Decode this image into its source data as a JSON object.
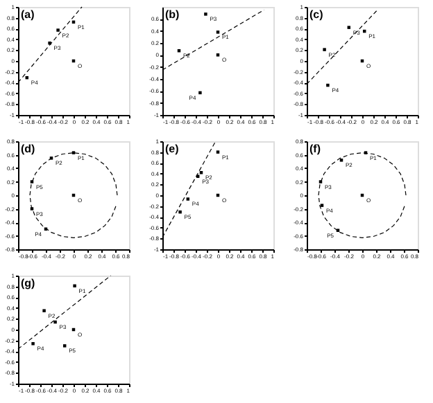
{
  "chart_data": [
    {
      "type": "scatter",
      "title": "(a)",
      "line_style": "dashed",
      "xlim": [
        -1,
        1
      ],
      "ylim": [
        -1,
        1
      ],
      "xticks": [
        -1,
        -0.8,
        -0.6,
        -0.4,
        -0.2,
        0,
        0.2,
        0.4,
        0.6,
        0.8,
        1
      ],
      "yticks": [
        -1,
        -0.8,
        -0.6,
        -0.4,
        -0.2,
        0,
        0.2,
        0.4,
        0.6,
        0.8,
        1
      ],
      "series": [
        {
          "type": "scatter",
          "marker": "square",
          "color": "#000000",
          "x": [
            0,
            -0.28,
            -0.43,
            0,
            -0.84
          ],
          "values": [
            0.72,
            0.57,
            0.33,
            0,
            -0.31
          ]
        },
        {
          "type": "line",
          "color": "#000000",
          "x": [
            -1,
            0.15
          ],
          "values": [
            -0.4,
            1
          ]
        }
      ],
      "annotations": [
        {
          "text": "P1",
          "x": 0,
          "y": 0.72
        },
        {
          "text": "P2",
          "x": -0.28,
          "y": 0.57
        },
        {
          "text": "P3",
          "x": -0.43,
          "y": 0.33
        },
        {
          "text": "O",
          "x": 0,
          "y": 0
        },
        {
          "text": "P4",
          "x": -0.84,
          "y": -0.31
        }
      ]
    },
    {
      "type": "scatter",
      "title": "(b)",
      "line_style": "dashed",
      "xlim": [
        -1,
        1
      ],
      "ylim": [
        -1,
        0.8
      ],
      "xticks": [
        -1,
        -0.8,
        -0.6,
        -0.4,
        -0.2,
        0,
        0.2,
        0.4,
        0.6,
        0.8,
        1
      ],
      "yticks": [
        -1,
        -0.8,
        -0.6,
        -0.4,
        -0.2,
        0,
        0.2,
        0.4,
        0.6
      ],
      "series": [
        {
          "type": "scatter",
          "marker": "square",
          "color": "#000000",
          "x": [
            0,
            -0.7,
            -0.22,
            0,
            -0.32
          ],
          "values": [
            0.38,
            0.07,
            0.68,
            0,
            -0.63
          ]
        },
        {
          "type": "line",
          "color": "#000000",
          "x": [
            -1,
            0.83
          ],
          "values": [
            -0.25,
            0.75
          ]
        }
      ],
      "annotations": [
        {
          "text": "P1",
          "x": 0,
          "y": 0.38
        },
        {
          "text": "P2",
          "x": -0.7,
          "y": 0.07
        },
        {
          "text": "P3",
          "x": -0.22,
          "y": 0.68
        },
        {
          "text": "O",
          "x": 0,
          "y": 0
        },
        {
          "text": "P4",
          "x": -0.32,
          "y": -0.63
        }
      ]
    },
    {
      "type": "scatter",
      "title": "(c)",
      "line_style": "dashed",
      "xlim": [
        -1,
        1
      ],
      "ylim": [
        -1,
        1
      ],
      "xticks": [
        -1,
        -0.8,
        -0.6,
        -0.4,
        -0.2,
        0,
        0.2,
        0.4,
        0.6,
        0.8,
        1
      ],
      "yticks": [
        -1,
        -0.8,
        -0.6,
        -0.4,
        -0.2,
        0,
        0.2,
        0.4,
        0.6,
        0.8,
        1
      ],
      "series": [
        {
          "type": "scatter",
          "marker": "square",
          "color": "#000000",
          "x": [
            0.04,
            -0.68,
            -0.24,
            0,
            -0.62
          ],
          "values": [
            0.55,
            0.21,
            0.62,
            0,
            -0.45
          ]
        },
        {
          "type": "line",
          "color": "#000000",
          "x": [
            -1,
            0.28
          ],
          "values": [
            -0.43,
            0.95
          ]
        }
      ],
      "annotations": [
        {
          "text": "P1",
          "x": 0.04,
          "y": 0.55
        },
        {
          "text": "P2",
          "x": -0.68,
          "y": 0.21
        },
        {
          "text": "P3",
          "x": -0.24,
          "y": 0.62
        },
        {
          "text": "O",
          "x": 0,
          "y": 0
        },
        {
          "text": "P4",
          "x": -0.62,
          "y": -0.45
        }
      ]
    },
    {
      "type": "scatter",
      "title": "(d)",
      "line_style": "dashed",
      "xlim": [
        -0.8,
        0.8
      ],
      "ylim": [
        -0.8,
        0.8
      ],
      "xticks": [
        -0.8,
        -0.6,
        -0.4,
        -0.2,
        0,
        0.2,
        0.4,
        0.6,
        0.8
      ],
      "yticks": [
        -0.8,
        -0.6,
        -0.4,
        -0.2,
        0,
        0.2,
        0.4,
        0.6,
        0.8
      ],
      "series": [
        {
          "type": "scatter",
          "marker": "square",
          "color": "#000000",
          "x": [
            0,
            -0.32,
            -0.6,
            0,
            -0.6,
            -0.4
          ],
          "values": [
            0.63,
            0.55,
            0.2,
            0,
            -0.2,
            -0.5
          ]
        },
        {
          "type": "line",
          "color": "#000000",
          "x": [
            0.63,
            0.61,
            0.55,
            0.45,
            0.32,
            0.16,
            0,
            -0.16,
            -0.32,
            -0.45,
            -0.55,
            -0.61,
            -0.63,
            -0.61,
            -0.55,
            -0.45,
            -0.32,
            -0.16,
            0,
            0.16,
            0.32,
            0.45,
            0.55,
            0.61
          ],
          "values": [
            0,
            0.16,
            0.32,
            0.45,
            0.55,
            0.61,
            0.63,
            0.61,
            0.55,
            0.45,
            0.32,
            0.16,
            0,
            -0.16,
            -0.32,
            -0.45,
            -0.55,
            -0.61,
            -0.63,
            -0.61,
            -0.55,
            -0.45,
            -0.32,
            -0.16
          ]
        }
      ],
      "annotations": [
        {
          "text": "P1",
          "x": 0,
          "y": 0.63
        },
        {
          "text": "P2",
          "x": -0.32,
          "y": 0.55
        },
        {
          "text": "P5",
          "x": -0.6,
          "y": 0.2
        },
        {
          "text": "O",
          "x": 0,
          "y": 0
        },
        {
          "text": "P3",
          "x": -0.6,
          "y": -0.2
        },
        {
          "text": "P4",
          "x": -0.4,
          "y": -0.5
        }
      ]
    },
    {
      "type": "scatter",
      "title": "(e)",
      "line_style": "dashed",
      "xlim": [
        -1,
        1
      ],
      "ylim": [
        -1,
        1
      ],
      "xticks": [
        -1,
        -0.8,
        -0.6,
        -0.4,
        -0.2,
        0,
        0.2,
        0.4,
        0.6,
        0.8,
        1
      ],
      "yticks": [
        -1,
        -0.8,
        -0.6,
        -0.4,
        -0.2,
        0,
        0.2,
        0.4,
        0.6,
        0.8,
        1
      ],
      "series": [
        {
          "type": "scatter",
          "marker": "square",
          "color": "#000000",
          "x": [
            0,
            -0.3,
            -0.36,
            0,
            -0.54,
            -0.68
          ],
          "values": [
            0.8,
            0.42,
            0.35,
            0,
            -0.07,
            -0.31
          ]
        },
        {
          "type": "line",
          "color": "#000000",
          "x": [
            -1,
            -0.04
          ],
          "values": [
            -0.78,
            1
          ]
        }
      ],
      "annotations": [
        {
          "text": "P1",
          "x": 0,
          "y": 0.8
        },
        {
          "text": "P2",
          "x": -0.3,
          "y": 0.42
        },
        {
          "text": "P3",
          "x": -0.36,
          "y": 0.35
        },
        {
          "text": "O",
          "x": 0,
          "y": 0
        },
        {
          "text": "P4",
          "x": -0.54,
          "y": -0.07
        },
        {
          "text": "P5",
          "x": -0.68,
          "y": -0.31
        }
      ]
    },
    {
      "type": "scatter",
      "title": "(f)",
      "line_style": "dashed",
      "xlim": [
        -0.8,
        0.8
      ],
      "ylim": [
        -0.8,
        0.8
      ],
      "xticks": [
        -0.8,
        -0.6,
        -0.4,
        -0.2,
        0,
        0.2,
        0.4,
        0.6,
        0.8
      ],
      "yticks": [
        -0.8,
        -0.6,
        -0.4,
        -0.2,
        0,
        0.2,
        0.4,
        0.6,
        0.8
      ],
      "series": [
        {
          "type": "scatter",
          "marker": "square",
          "color": "#000000",
          "x": [
            0.05,
            -0.3,
            -0.6,
            0,
            -0.58,
            -0.35
          ],
          "values": [
            0.63,
            0.52,
            0.2,
            0,
            -0.15,
            -0.52
          ]
        },
        {
          "type": "line",
          "color": "#000000",
          "x": [
            0.63,
            0.61,
            0.55,
            0.45,
            0.32,
            0.16,
            0,
            -0.16,
            -0.32,
            -0.45,
            -0.55,
            -0.61,
            -0.63,
            -0.61,
            -0.55,
            -0.45,
            -0.32,
            -0.16,
            0,
            0.16,
            0.32,
            0.45,
            0.55,
            0.61
          ],
          "values": [
            0,
            0.16,
            0.32,
            0.45,
            0.55,
            0.61,
            0.63,
            0.61,
            0.55,
            0.45,
            0.32,
            0.16,
            0,
            -0.16,
            -0.32,
            -0.45,
            -0.55,
            -0.61,
            -0.63,
            -0.61,
            -0.55,
            -0.45,
            -0.32,
            -0.16
          ]
        }
      ],
      "annotations": [
        {
          "text": "P1",
          "x": 0.05,
          "y": 0.63
        },
        {
          "text": "P2",
          "x": -0.3,
          "y": 0.52
        },
        {
          "text": "P3",
          "x": -0.6,
          "y": 0.2
        },
        {
          "text": "O",
          "x": 0,
          "y": 0
        },
        {
          "text": "P4",
          "x": -0.58,
          "y": -0.15
        },
        {
          "text": "P5",
          "x": -0.35,
          "y": -0.52
        }
      ]
    },
    {
      "type": "scatter",
      "title": "(g)",
      "line_style": "dashed",
      "xlim": [
        -1,
        1
      ],
      "ylim": [
        -1,
        1
      ],
      "xticks": [
        -1,
        -0.8,
        -0.6,
        -0.4,
        -0.2,
        0,
        0.2,
        0.4,
        0.6,
        0.8,
        1
      ],
      "yticks": [
        -1,
        -0.8,
        -0.6,
        -0.4,
        -0.2,
        0,
        0.2,
        0.4,
        0.6,
        0.8,
        1
      ],
      "series": [
        {
          "type": "scatter",
          "marker": "square",
          "color": "#000000",
          "x": [
            0.02,
            -0.53,
            -0.33,
            0,
            -0.73,
            -0.16
          ],
          "values": [
            0.81,
            0.35,
            0.14,
            0,
            -0.26,
            -0.3
          ]
        },
        {
          "type": "line",
          "color": "#000000",
          "x": [
            -1,
            0.67
          ],
          "values": [
            -0.36,
            1
          ]
        }
      ],
      "annotations": [
        {
          "text": "P1",
          "x": 0.02,
          "y": 0.81
        },
        {
          "text": "P2",
          "x": -0.53,
          "y": 0.35
        },
        {
          "text": "P3",
          "x": -0.33,
          "y": 0.14
        },
        {
          "text": "O",
          "x": 0,
          "y": 0
        },
        {
          "text": "P4",
          "x": -0.73,
          "y": -0.26
        },
        {
          "text": "P5",
          "x": -0.16,
          "y": -0.3
        }
      ]
    }
  ]
}
